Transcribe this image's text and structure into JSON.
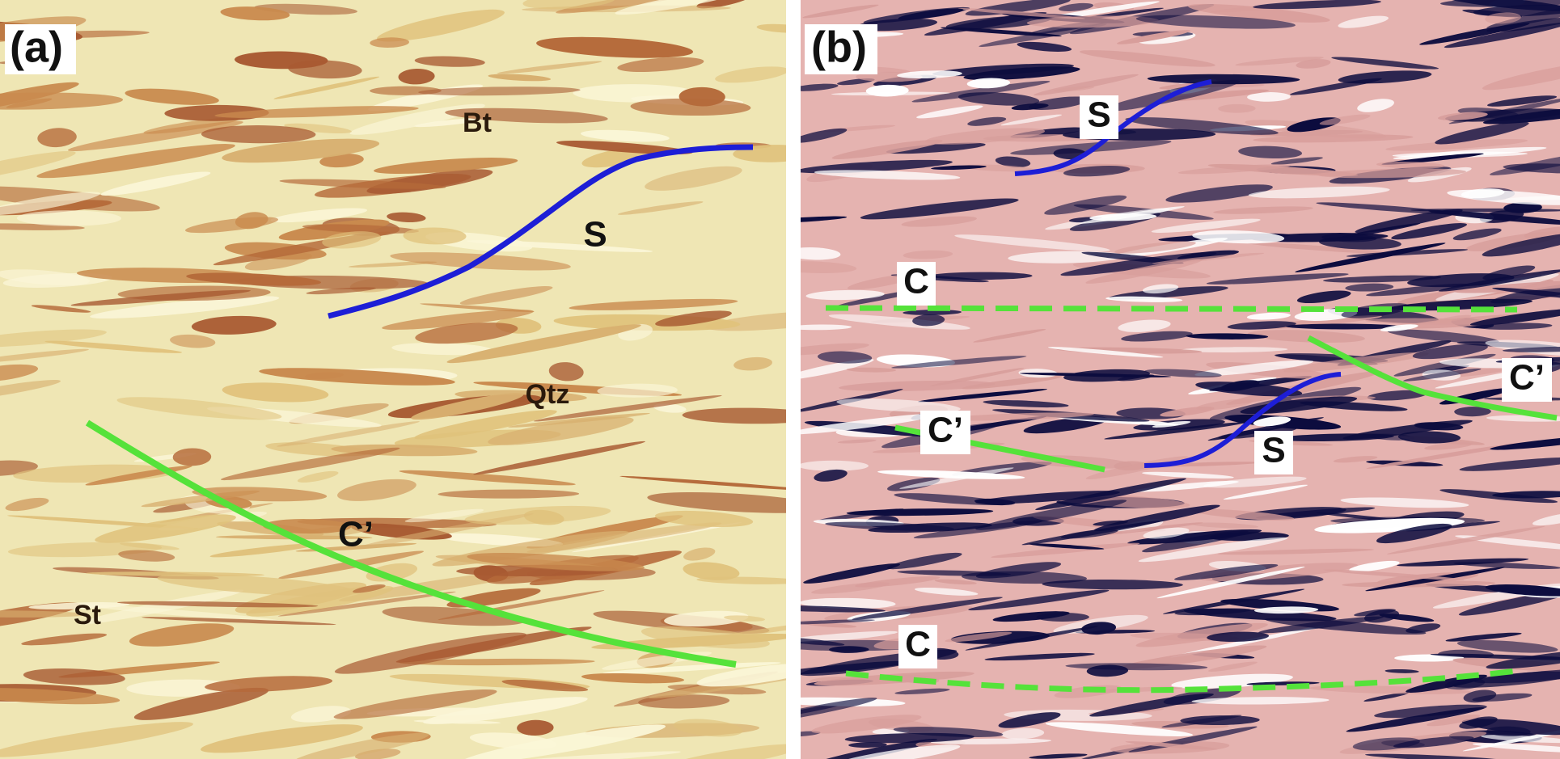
{
  "panels": [
    {
      "label": "(a)",
      "annotations": [
        "Bt",
        "S",
        "Qtz",
        "C’",
        "St"
      ]
    },
    {
      "label": "(b)",
      "annotations": [
        "S",
        "C",
        "C’",
        "C’",
        "S",
        "C"
      ]
    }
  ]
}
